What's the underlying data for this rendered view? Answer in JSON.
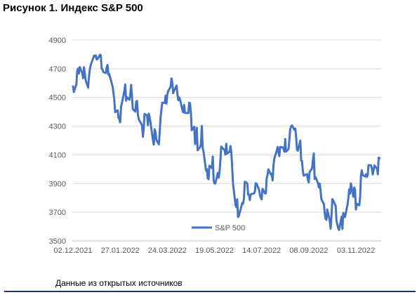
{
  "figure": {
    "title": "Рисунок 1. Индекс S&P 500",
    "source_note": "Данные из открытых источников",
    "accent_rule_color": "#1f3864"
  },
  "chart_data": {
    "type": "line",
    "title": "",
    "xlabel": "",
    "ylabel": "",
    "ylim": [
      3500,
      4900
    ],
    "yticks": [
      3500,
      3700,
      3900,
      4100,
      4300,
      4500,
      4700,
      4900
    ],
    "xtick_labels": [
      "02.12.2021",
      "27.01.2022",
      "24.03.2022",
      "19.05.2022",
      "14.07.2022",
      "08.09.2022",
      "03.11.2022"
    ],
    "grid": true,
    "legend_placement": "bottom-center",
    "series": [
      {
        "name": "S&P 500",
        "color": "#4472c4",
        "x": [
          "02.12.2021",
          "03.12.2021",
          "06.12.2021",
          "07.12.2021",
          "08.12.2021",
          "09.12.2021",
          "10.12.2021",
          "13.12.2021",
          "14.12.2021",
          "15.12.2021",
          "16.12.2021",
          "17.12.2021",
          "20.12.2021",
          "21.12.2021",
          "22.12.2021",
          "23.12.2021",
          "27.12.2021",
          "28.12.2021",
          "29.12.2021",
          "30.12.2021",
          "31.12.2021",
          "03.01.2022",
          "04.01.2022",
          "05.01.2022",
          "06.01.2022",
          "07.01.2022",
          "10.01.2022",
          "11.01.2022",
          "12.01.2022",
          "13.01.2022",
          "14.01.2022",
          "18.01.2022",
          "19.01.2022",
          "20.01.2022",
          "21.01.2022",
          "24.01.2022",
          "25.01.2022",
          "26.01.2022",
          "27.01.2022",
          "28.01.2022",
          "31.01.2022",
          "01.02.2022",
          "02.02.2022",
          "03.02.2022",
          "04.02.2022",
          "07.02.2022",
          "08.02.2022",
          "09.02.2022",
          "10.02.2022",
          "11.02.2022",
          "14.02.2022",
          "15.02.2022",
          "16.02.2022",
          "17.02.2022",
          "18.02.2022",
          "22.02.2022",
          "23.02.2022",
          "24.02.2022",
          "25.02.2022",
          "28.02.2022",
          "01.03.2022",
          "02.03.2022",
          "03.03.2022",
          "04.03.2022",
          "07.03.2022",
          "08.03.2022",
          "09.03.2022",
          "10.03.2022",
          "11.03.2022",
          "14.03.2022",
          "15.03.2022",
          "16.03.2022",
          "17.03.2022",
          "18.03.2022",
          "21.03.2022",
          "22.03.2022",
          "23.03.2022",
          "24.03.2022",
          "25.03.2022",
          "28.03.2022",
          "29.03.2022",
          "30.03.2022",
          "31.03.2022",
          "01.04.2022",
          "04.04.2022",
          "05.04.2022",
          "06.04.2022",
          "07.04.2022",
          "08.04.2022",
          "11.04.2022",
          "12.04.2022",
          "13.04.2022",
          "14.04.2022",
          "18.04.2022",
          "19.04.2022",
          "20.04.2022",
          "21.04.2022",
          "22.04.2022",
          "25.04.2022",
          "26.04.2022",
          "27.04.2022",
          "28.04.2022",
          "29.04.2022",
          "02.05.2022",
          "03.05.2022",
          "04.05.2022",
          "05.05.2022",
          "06.05.2022",
          "09.05.2022",
          "10.05.2022",
          "11.05.2022",
          "12.05.2022",
          "13.05.2022",
          "16.05.2022",
          "17.05.2022",
          "18.05.2022",
          "19.05.2022",
          "20.05.2022",
          "23.05.2022",
          "24.05.2022",
          "25.05.2022",
          "26.05.2022",
          "27.05.2022",
          "31.05.2022",
          "01.06.2022",
          "02.06.2022",
          "03.06.2022",
          "06.06.2022",
          "07.06.2022",
          "08.06.2022",
          "09.06.2022",
          "10.06.2022",
          "13.06.2022",
          "14.06.2022",
          "15.06.2022",
          "16.06.2022",
          "17.06.2022",
          "21.06.2022",
          "22.06.2022",
          "23.06.2022",
          "24.06.2022",
          "27.06.2022",
          "28.06.2022",
          "29.06.2022",
          "30.06.2022",
          "01.07.2022",
          "05.07.2022",
          "06.07.2022",
          "07.07.2022",
          "08.07.2022",
          "11.07.2022",
          "12.07.2022",
          "13.07.2022",
          "14.07.2022",
          "15.07.2022",
          "18.07.2022",
          "19.07.2022",
          "20.07.2022",
          "21.07.2022",
          "22.07.2022",
          "25.07.2022",
          "26.07.2022",
          "27.07.2022",
          "28.07.2022",
          "29.07.2022",
          "01.08.2022",
          "02.08.2022",
          "03.08.2022",
          "04.08.2022",
          "05.08.2022",
          "08.08.2022",
          "09.08.2022",
          "10.08.2022",
          "11.08.2022",
          "12.08.2022",
          "15.08.2022",
          "16.08.2022",
          "17.08.2022",
          "18.08.2022",
          "19.08.2022",
          "22.08.2022",
          "23.08.2022",
          "24.08.2022",
          "25.08.2022",
          "26.08.2022",
          "29.08.2022",
          "30.08.2022",
          "31.08.2022",
          "01.09.2022",
          "02.09.2022",
          "06.09.2022",
          "07.09.2022",
          "08.09.2022",
          "09.09.2022",
          "12.09.2022",
          "13.09.2022",
          "14.09.2022",
          "15.09.2022",
          "16.09.2022",
          "19.09.2022",
          "20.09.2022",
          "21.09.2022",
          "22.09.2022",
          "23.09.2022",
          "26.09.2022",
          "27.09.2022",
          "28.09.2022",
          "29.09.2022",
          "30.09.2022",
          "03.10.2022",
          "04.10.2022",
          "05.10.2022",
          "06.10.2022",
          "07.10.2022",
          "10.10.2022",
          "11.10.2022",
          "12.10.2022",
          "13.10.2022",
          "14.10.2022",
          "17.10.2022",
          "18.10.2022",
          "19.10.2022",
          "20.10.2022",
          "21.10.2022",
          "24.10.2022",
          "25.10.2022",
          "26.10.2022",
          "27.10.2022",
          "28.10.2022",
          "31.10.2022",
          "01.11.2022",
          "02.11.2022",
          "03.11.2022",
          "04.11.2022",
          "07.11.2022",
          "08.11.2022",
          "09.11.2022",
          "10.11.2022",
          "11.11.2022",
          "14.11.2022",
          "15.11.2022",
          "16.11.2022",
          "17.11.2022",
          "18.11.2022",
          "21.11.2022",
          "22.11.2022",
          "23.11.2022",
          "25.11.2022",
          "28.11.2022",
          "29.11.2022",
          "30.11.2022",
          "01.12.2022"
        ],
        "values": [
          4577,
          4538,
          4591,
          4686,
          4701,
          4667,
          4712,
          4669,
          4634,
          4710,
          4669,
          4621,
          4568,
          4649,
          4697,
          4725,
          4791,
          4786,
          4793,
          4766,
          4766,
          4797,
          4794,
          4701,
          4696,
          4677,
          4670,
          4713,
          4726,
          4659,
          4663,
          4577,
          4533,
          4483,
          4398,
          4410,
          4357,
          4350,
          4327,
          4432,
          4516,
          4546,
          4590,
          4478,
          4501,
          4484,
          4522,
          4587,
          4504,
          4419,
          4401,
          4472,
          4475,
          4381,
          4349,
          4305,
          4226,
          4289,
          4385,
          4374,
          4306,
          4387,
          4364,
          4329,
          4201,
          4171,
          4278,
          4260,
          4204,
          4173,
          4262,
          4358,
          4412,
          4463,
          4462,
          4512,
          4457,
          4520,
          4543,
          4575,
          4632,
          4602,
          4530,
          4546,
          4583,
          4526,
          4481,
          4500,
          4488,
          4413,
          4397,
          4447,
          4393,
          4391,
          4463,
          4459,
          4394,
          4272,
          4296,
          4175,
          4184,
          4288,
          4132,
          4155,
          4175,
          4301,
          4147,
          4123,
          3991,
          4001,
          3936,
          3930,
          4024,
          4008,
          4088,
          3924,
          3901,
          3901,
          3974,
          3941,
          3979,
          4058,
          4158,
          4132,
          4101,
          4177,
          4109,
          4121,
          4161,
          4116,
          4018,
          3901,
          3750,
          3735,
          3790,
          3667,
          3675,
          3765,
          3760,
          3796,
          3912,
          3901,
          3822,
          3819,
          3785,
          3825,
          3831,
          3845,
          3902,
          3899,
          3855,
          3819,
          3802,
          3790,
          3863,
          3831,
          3831,
          3937,
          3960,
          3999,
          3962,
          3967,
          3921,
          4023,
          4072,
          4130,
          4155,
          4118,
          4091,
          4155,
          4152,
          4141,
          4122,
          4210,
          4122,
          4140,
          4207,
          4280,
          4297,
          4305,
          4274,
          4283,
          4228,
          4137,
          4128,
          4199,
          4058,
          4057,
          3986,
          3955,
          3966,
          3924,
          3908,
          3980,
          4006,
          4067,
          4110,
          3932,
          3946,
          3901,
          3873,
          3900,
          3855,
          3790,
          3757,
          3693,
          3655,
          3647,
          3719,
          3640,
          3585,
          3678,
          3791,
          3783,
          3744,
          3639,
          3612,
          3588,
          3577,
          3669,
          3583,
          3695,
          3666,
          3666,
          3752,
          3797,
          3859,
          3830,
          3901,
          3807,
          3872,
          3856,
          3719,
          3759,
          3748,
          3806,
          3956,
          3992,
          3958,
          3949,
          3965,
          3946,
          3958,
          4027,
          4026,
          4003,
          3963,
          4026,
          4003,
          3964,
          4080,
          4076
        ]
      }
    ]
  }
}
